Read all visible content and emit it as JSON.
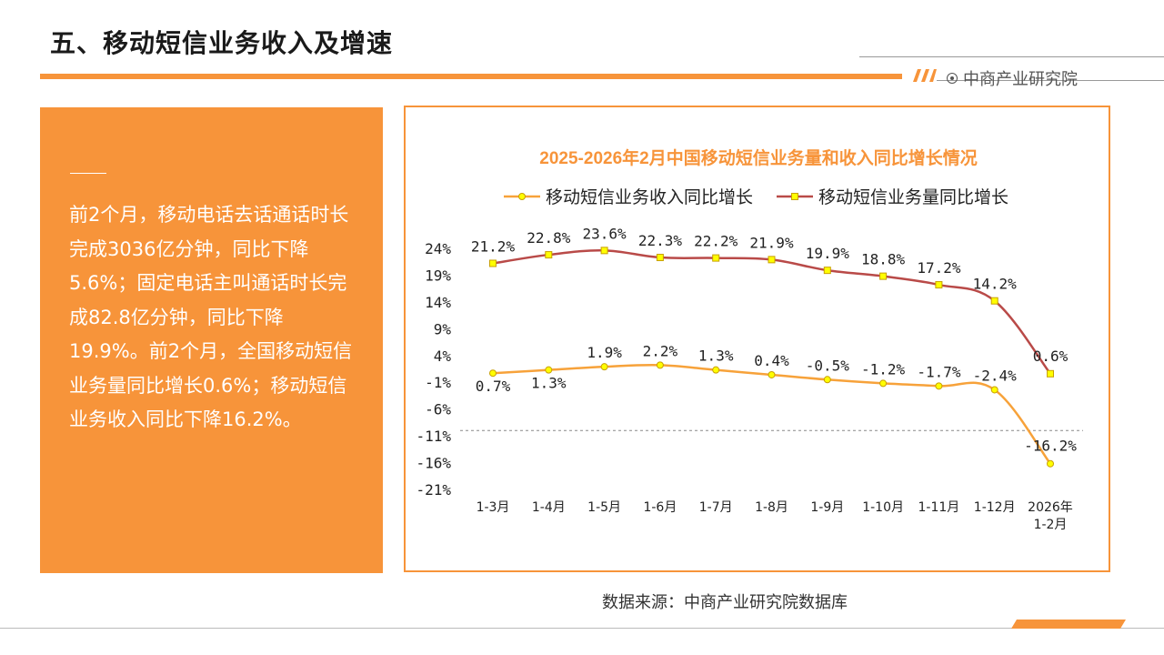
{
  "page": {
    "title": "五、移动短信业务收入及增速",
    "brand": "中商产业研究院",
    "source_label": "数据来源：",
    "source_value": "中商产业研究院数据库"
  },
  "panel": {
    "paragraph": "前2个月，移动电话去话通话时长完成3036亿分钟，同比下降5.6%；固定电话主叫通话时长完成82.8亿分钟，同比下降19.9%。前2个月，全国移动短信业务量同比增长0.6%；移动短信业务收入同比下降16.2%。"
  },
  "colors": {
    "accent": "#f7943a",
    "revenue_line": "#f7a23a",
    "volume_line": "#b94a48",
    "marker": "#ffff00"
  },
  "chart_data": {
    "type": "line",
    "title": "2025-2026年2月中国移动短信业务量和收入同比增长情况",
    "categories": [
      "1-3月",
      "1-4月",
      "1-5月",
      "1-6月",
      "1-7月",
      "1-8月",
      "1-9月",
      "1-10月",
      "1-11月",
      "1-12月",
      "2026年\n1-2月"
    ],
    "series": [
      {
        "name": "移动短信业务收入同比增长",
        "values": [
          0.7,
          1.3,
          1.9,
          2.2,
          1.3,
          0.4,
          -0.5,
          -1.2,
          -1.7,
          -2.4,
          -16.2
        ],
        "labels": [
          "0.7%",
          "1.3%",
          "1.9%",
          "2.2%",
          "1.3%",
          "0.4%",
          "-0.5%",
          "-1.2%",
          "-1.7%",
          "-2.4%",
          "-16.2%"
        ]
      },
      {
        "name": "移动短信业务量同比增长",
        "values": [
          21.2,
          22.8,
          23.6,
          22.3,
          22.2,
          21.9,
          19.9,
          18.8,
          17.2,
          14.2,
          0.6
        ],
        "labels": [
          "21.2%",
          "22.8%",
          "23.6%",
          "22.3%",
          "22.2%",
          "21.9%",
          "19.9%",
          "18.8%",
          "17.2%",
          "14.2%",
          "0.6%"
        ]
      }
    ],
    "y_ticks": [
      24,
      19,
      14,
      9,
      4,
      -1,
      -6,
      -11,
      -16,
      -21
    ],
    "y_tick_labels": [
      "24%",
      "19%",
      "14%",
      "9%",
      "4%",
      "-1%",
      "-6%",
      "-11%",
      "-16%",
      "-21%"
    ],
    "ylim": [
      -21,
      24
    ],
    "ylabel": "",
    "xlabel": ""
  }
}
